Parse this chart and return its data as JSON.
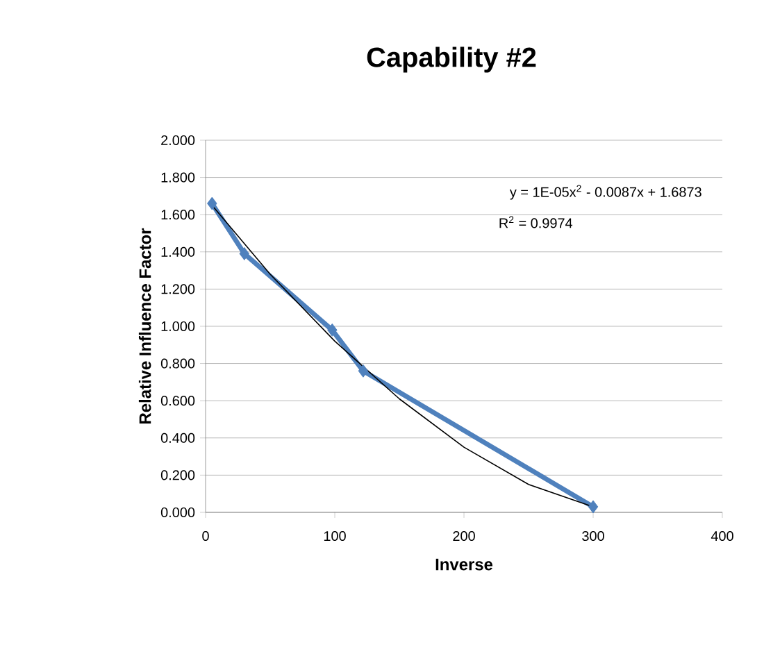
{
  "chart_data": {
    "type": "line",
    "title": "Capability #2",
    "xlabel": "Inverse",
    "ylabel": "Relative Influence Factor",
    "marker": "diamond",
    "grid": "y",
    "line_style": "solid",
    "xlim": [
      0,
      400
    ],
    "xticks": [
      0,
      100,
      200,
      300,
      400
    ],
    "ylim": [
      0,
      2
    ],
    "yticks": [
      {
        "value": 0,
        "label": "0.000"
      },
      {
        "value": 0.2,
        "label": "0.200"
      },
      {
        "value": 0.4,
        "label": "0.400"
      },
      {
        "value": 0.6,
        "label": "0.600"
      },
      {
        "value": 0.8,
        "label": "0.800"
      },
      {
        "value": 1,
        "label": "1.000"
      },
      {
        "value": 1.2,
        "label": "1.200"
      },
      {
        "value": 1.4,
        "label": "1.400"
      },
      {
        "value": 1.6,
        "label": "1.600"
      },
      {
        "value": 1.8,
        "label": "1.800"
      },
      {
        "value": 2,
        "label": "2.000"
      }
    ],
    "series": [
      {
        "color": "#4f81bd",
        "x": [
          5,
          30,
          98,
          122,
          300
        ],
        "values": [
          1.66,
          1.39,
          0.98,
          0.76,
          0.03
        ]
      },
      {
        "type": "line",
        "color": "#000000",
        "marker": "none",
        "x": [
          5,
          50,
          100,
          150,
          200,
          250,
          300
        ],
        "values": [
          1.65,
          1.28,
          0.92,
          0.61,
          0.35,
          0.15,
          0.03
        ]
      }
    ],
    "annotations": [
      "y = 1E-05x$^{2}$ - 0.0087x + 1.6873",
      "R$^{2}$ = 0.9974"
    ]
  }
}
